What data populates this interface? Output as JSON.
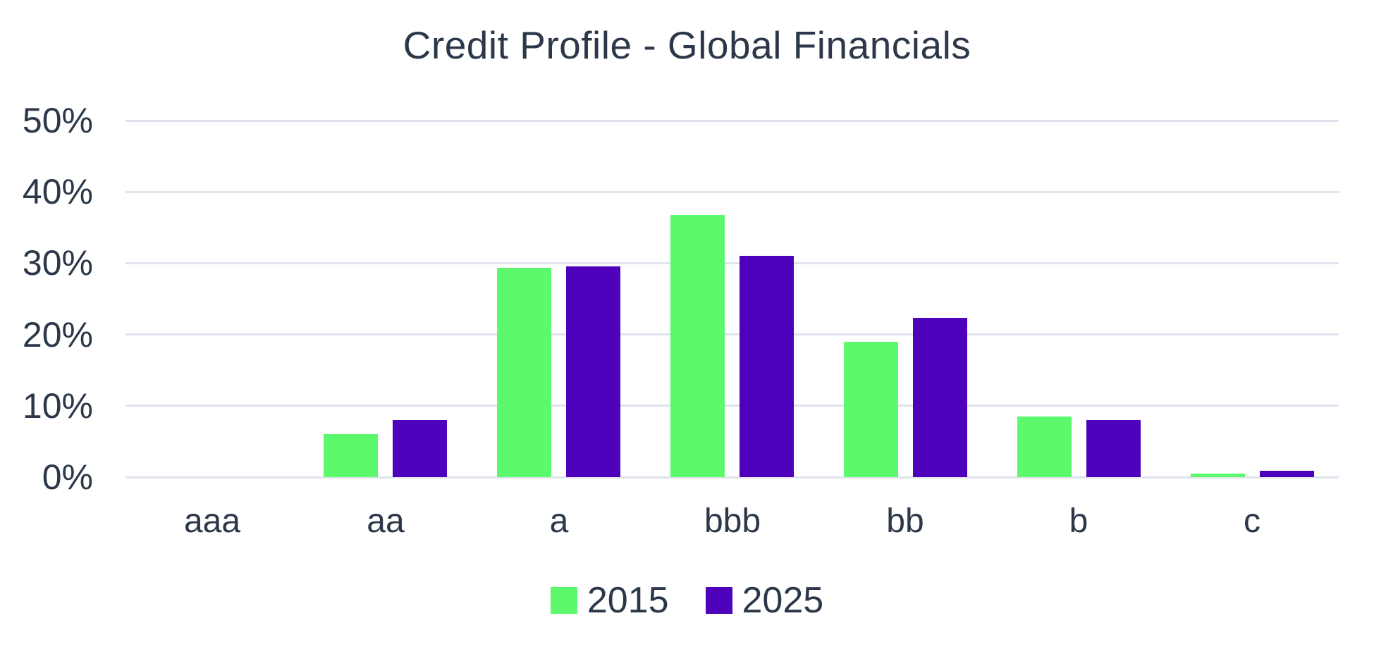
{
  "title": "Credit Profile - Global Financials",
  "colors": {
    "series_2015": "#5CF96D",
    "series_2025": "#4E02BC",
    "text": "#2C3849",
    "gridline": "#DFE3ED",
    "background": "#FFFFFF"
  },
  "chart_data": {
    "type": "bar",
    "title": "Credit Profile - Global Financials",
    "categories": [
      "aaa",
      "aa",
      "a",
      "bbb",
      "bb",
      "b",
      "c"
    ],
    "series": [
      {
        "name": "2015",
        "color": "#5CF96D",
        "values": [
          0,
          6,
          29.3,
          36.8,
          19,
          8.5,
          0.5
        ]
      },
      {
        "name": "2025",
        "color": "#4E02BC",
        "values": [
          0,
          8,
          29.5,
          31,
          22.3,
          8,
          0.9
        ]
      }
    ],
    "xlabel": "",
    "ylabel": "",
    "ylim": [
      0,
      50
    ],
    "yticks": [
      0,
      10,
      20,
      30,
      40,
      50
    ],
    "ytick_labels": [
      "0%",
      "10%",
      "20%",
      "30%",
      "40%",
      "50%"
    ],
    "grid": true,
    "legend_position": "bottom"
  }
}
